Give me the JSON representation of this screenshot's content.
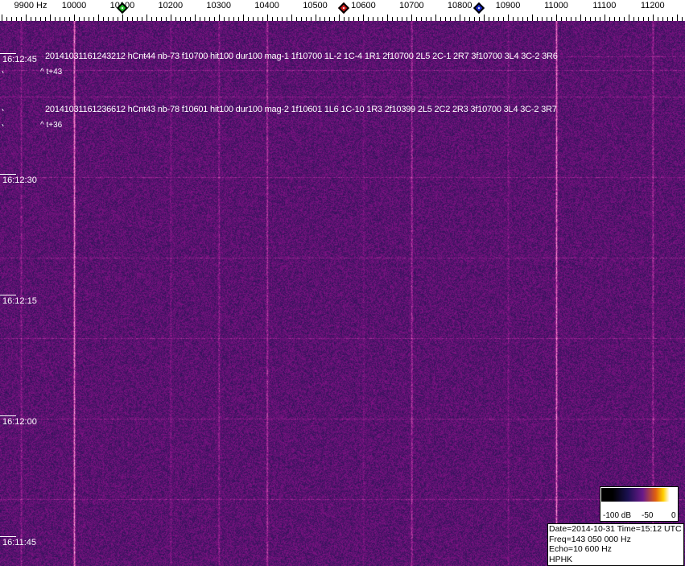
{
  "ruler": {
    "unit_label": "9900 Hz",
    "ticks": [
      "10000",
      "10100",
      "10200",
      "10300",
      "10400",
      "10500",
      "10600",
      "10700",
      "10800",
      "10900",
      "11000",
      "11100",
      "11200"
    ]
  },
  "markers": [
    {
      "freq": 10100,
      "color": "#22c02a"
    },
    {
      "freq": 10560,
      "color": "#d01818"
    },
    {
      "freq": 10840,
      "color": "#1a2ad0"
    }
  ],
  "times": [
    "16:12:45",
    "16:12:30",
    "16:12:15",
    "16:12:00",
    "16:11:45"
  ],
  "detections": [
    {
      "text": "20141031161243212 hCnt44 nb-73 f10700 hit100 dur100 mag-1 1f10700 1L-2 1C-4 1R1 2f10700 2L5 2C-1 2R7 3f10700 3L4 3C-2 3R6",
      "sub": "^ t+43"
    },
    {
      "text": "20141031161236612 hCnt43 nb-78 f10601 hit100 dur100 mag-2 1f10601 1L6 1C-10 1R3 2f10399 2L5 2C2 2R3 3f10700 3L4 3C-2 3R7",
      "sub": "^ t+36"
    }
  ],
  "scale": {
    "min": "-100 dB",
    "mid": "-50",
    "max": "0"
  },
  "info": {
    "date_time": "Date=2014-10-31 Time=15:12 UTC",
    "freq": "Freq=143 050 000 Hz",
    "echo": "Echo=10 600 Hz",
    "station": "HPHK"
  },
  "colors": {
    "background": "#2a1a70",
    "line": "#c0406a"
  }
}
